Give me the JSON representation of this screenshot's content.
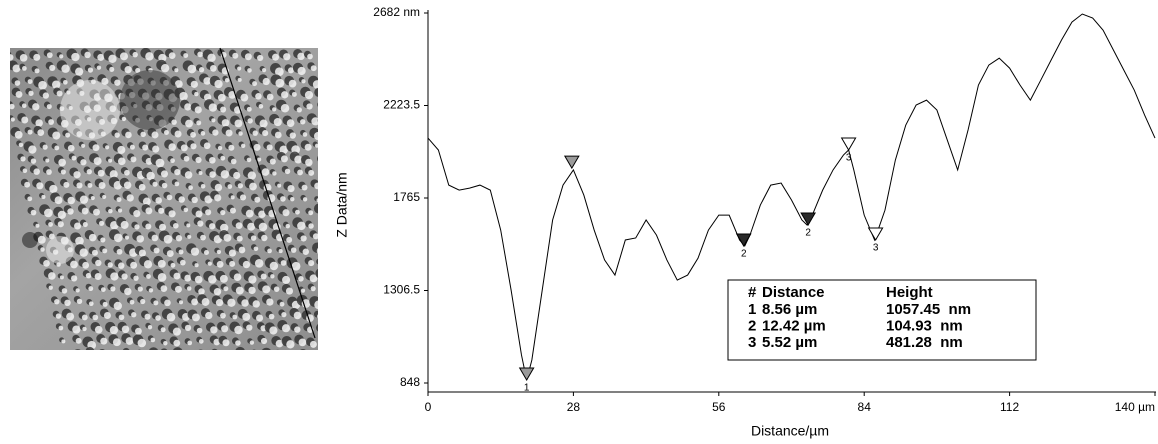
{
  "chart_data": {
    "type": "line",
    "x_label": "Distance/µm",
    "y_label": "Z Data/nm",
    "xlim": [
      0,
      140
    ],
    "xticks": [
      0,
      28,
      56,
      84,
      112,
      {
        "value": 140,
        "label": "140 µm"
      }
    ],
    "ylim": [
      848,
      2682
    ],
    "yticks": [
      848,
      1306.5,
      1765,
      2223.5,
      {
        "value": 2682,
        "label": "2682 nm"
      }
    ],
    "series": [
      {
        "color": "#000000",
        "x": [
          0,
          2,
          4,
          6,
          8,
          10,
          12,
          14,
          16,
          18,
          19,
          20,
          22,
          24,
          26,
          28,
          30,
          32,
          34,
          36,
          38,
          40,
          42,
          44,
          46,
          48,
          50,
          52,
          54,
          56,
          58,
          60,
          61,
          62,
          64,
          66,
          68,
          70,
          72,
          73,
          74,
          76,
          78,
          80,
          81,
          82,
          84,
          86,
          88,
          90,
          92,
          94,
          96,
          98,
          100,
          102,
          104,
          106,
          108,
          110,
          112,
          114,
          116,
          118,
          120,
          122,
          124,
          126,
          128,
          130,
          132,
          134,
          136,
          138,
          140
        ],
        "values": [
          2062,
          2003,
          1829,
          1804,
          1814,
          1829,
          1804,
          1606,
          1309,
          987,
          863,
          962,
          1309,
          1656,
          1829,
          1904,
          1780,
          1606,
          1458,
          1383,
          1557,
          1567,
          1656,
          1581,
          1458,
          1358,
          1383,
          1467,
          1606,
          1680,
          1680,
          1557,
          1527,
          1581,
          1730,
          1829,
          1839,
          1755,
          1656,
          1631,
          1680,
          1804,
          1904,
          1978,
          2003,
          1904,
          1680,
          1557,
          1705,
          1953,
          2126,
          2226,
          2250,
          2201,
          2052,
          1904,
          2102,
          2325,
          2424,
          2458,
          2409,
          2325,
          2250,
          2349,
          2449,
          2548,
          2637,
          2677,
          2657,
          2597,
          2498,
          2399,
          2300,
          2176,
          2062
        ]
      }
    ],
    "markers": [
      {
        "x": 19,
        "y": 863,
        "label": "1",
        "color": "#9a9a9a"
      },
      {
        "x": 27.7,
        "y": 1913,
        "color": "#9a9a9a"
      },
      {
        "x": 60.8,
        "y": 1527,
        "label": "2",
        "color": "#2a2a2a"
      },
      {
        "x": 73.2,
        "y": 1631,
        "label": "2",
        "color": "#2a2a2a"
      },
      {
        "x": 81,
        "y": 2003,
        "label": "3",
        "color": "#ffffff"
      },
      {
        "x": 86.2,
        "y": 1557,
        "label": "3",
        "color": "#ffffff"
      }
    ],
    "table": {
      "header": [
        "#",
        "Distance",
        "Height"
      ],
      "rows": [
        [
          "1",
          "8.56 µm",
          "1057.45  nm"
        ],
        [
          "2",
          "12.42 µm",
          "104.93  nm"
        ],
        [
          "3",
          "5.52 µm",
          "481.28  nm"
        ]
      ]
    }
  }
}
